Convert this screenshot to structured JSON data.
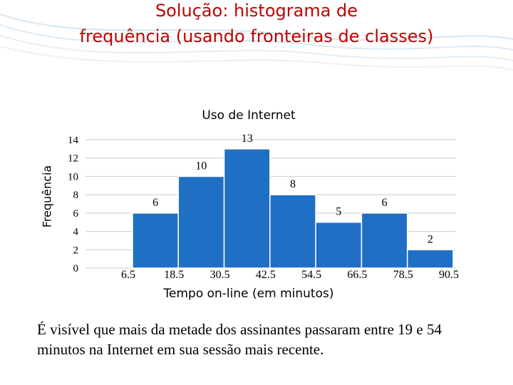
{
  "slide": {
    "title_line1": "Solução: histograma de",
    "title_line2": "frequência (usando fronteiras de classes)",
    "caption": "É visível que mais da metade dos assinantes passaram entre 19 e 54 minutos na Internet em sua sessão mais recente."
  },
  "chart_data": {
    "type": "bar",
    "title": "Uso de Internet",
    "xlabel": "Tempo on-line (em minutos)",
    "ylabel": "Frequência",
    "bin_edges": [
      6.5,
      18.5,
      30.5,
      42.5,
      54.5,
      66.5,
      78.5,
      90.5
    ],
    "x_tick_labels": [
      "6.5",
      "18.5",
      "30.5",
      "42.5",
      "54.5",
      "66.5",
      "78.5",
      "90.5"
    ],
    "values": [
      6,
      10,
      13,
      8,
      5,
      6,
      2
    ],
    "value_labels": [
      "6",
      "10",
      "13",
      "8",
      "5",
      "6",
      "2"
    ],
    "y_ticks": [
      0,
      2,
      4,
      6,
      8,
      10,
      12,
      14
    ],
    "y_tick_labels": [
      "0",
      "2",
      "4",
      "6",
      "8",
      "10",
      "12",
      "14"
    ],
    "ylim": [
      0,
      14
    ],
    "grid": "horizontal",
    "colors": {
      "bar": "#1f6fc5",
      "bar_edge": "#ffffff",
      "grid": "#cccccc"
    }
  }
}
